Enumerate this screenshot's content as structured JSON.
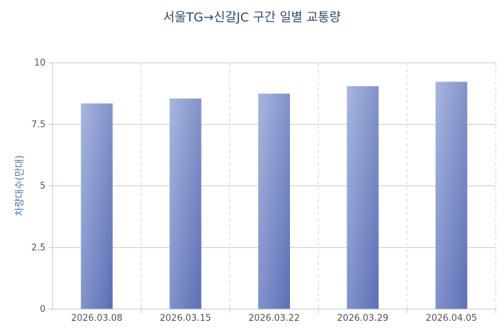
{
  "chart_data": {
    "type": "bar",
    "title": "서울TG→신갈JC 구간 일별 교통량",
    "xlabel": "",
    "ylabel": "차량대수(만대)",
    "categories": [
      "2026.03.08",
      "2026.03.15",
      "2026.03.22",
      "2026.03.29",
      "2026.04.05"
    ],
    "values": [
      8.35,
      8.55,
      8.75,
      9.05,
      9.23
    ],
    "ylim": [
      0,
      10
    ],
    "yticks": [
      0,
      2.5,
      5,
      7.5,
      10
    ],
    "ytick_labels": [
      "0",
      "2.5",
      "5",
      "7.5",
      "10"
    ],
    "grid": true,
    "legend": "none",
    "colors": {
      "bar_light": "#a9b6de",
      "bar_dark": "#5b6fb6",
      "grid_solid": "#c8c8c8",
      "grid_dashed": "#d6d6d6",
      "axis": "#b8c4d4",
      "title": "#2f4a6e",
      "ylabel": "#4a6fa5"
    }
  }
}
